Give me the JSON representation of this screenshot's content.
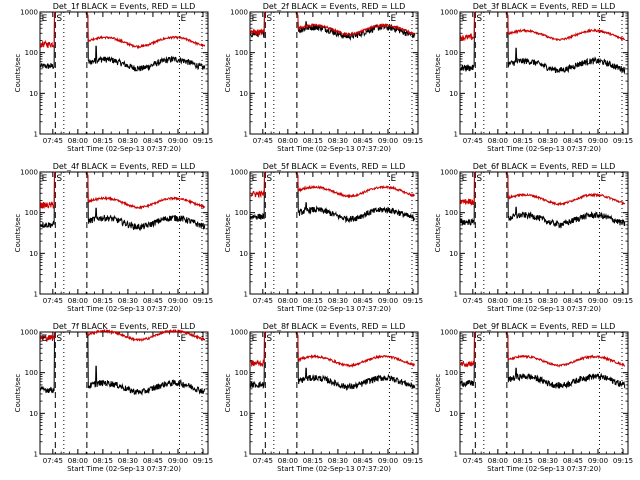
{
  "chart_data": [
    {
      "type": "line",
      "title": "Det_1f BLACK = Events, RED = LLD",
      "xlabel": "Start Time (02-Sep-13 07:37:20)",
      "ylabel": "Counts/sec",
      "ylog": true,
      "ylim": [
        1,
        1000
      ],
      "y_tick_labels": [
        "1",
        "10",
        "100",
        "1000"
      ],
      "x_tick_labels": [
        "07:45",
        "08:00",
        "08:15",
        "08:30",
        "08:45",
        "09:00",
        "09:15"
      ],
      "x_ticks": [
        7.75,
        8.0,
        8.25,
        8.5,
        8.75,
        9.0,
        9.25
      ],
      "xlim": [
        7.622,
        9.3
      ],
      "markers": [
        "E",
        "S",
        "E"
      ],
      "markers_x": [
        7.628,
        7.775,
        9.015
      ],
      "dashed_lines": [
        7.775,
        8.09
      ],
      "dotted_lines": [
        7.86,
        9.015,
        9.24
      ],
      "series": [
        {
          "color": "#000000",
          "base": 55,
          "peak": 90,
          "red_base": null
        },
        {
          "color": "#cc0000",
          "base": 190,
          "peak": 260
        }
      ]
    },
    {
      "type": "line",
      "title": "Det_2f BLACK = Events, RED = LLD",
      "xlabel": "Start Time (02-Sep-13 07:37:20)",
      "ylabel": "Counts/sec",
      "ylog": true,
      "ylim": [
        1,
        1000
      ],
      "y_tick_labels": [
        "1",
        "10",
        "100",
        "1000"
      ],
      "x_tick_labels": [
        "07:45",
        "08:00",
        "08:15",
        "08:30",
        "08:45",
        "09:00",
        "09:15"
      ],
      "x_ticks": [
        7.75,
        8.0,
        8.25,
        8.5,
        8.75,
        9.0,
        9.25
      ],
      "xlim": [
        7.622,
        9.3
      ],
      "markers": [
        "E",
        "S",
        "E"
      ],
      "markers_x": [
        7.628,
        7.775,
        9.015
      ],
      "dashed_lines": [
        7.775,
        8.09
      ],
      "dotted_lines": [
        7.86,
        9.015,
        9.24
      ],
      "series": [
        {
          "color": "#000000",
          "base": 340,
          "peak": 360
        },
        {
          "color": "#cc0000",
          "base": 380,
          "peak": 620
        }
      ]
    },
    {
      "type": "line",
      "title": "Det_3f BLACK = Events, RED = LLD",
      "xlabel": "Start Time (02-Sep-13 07:37:20)",
      "ylabel": "Counts/sec",
      "ylog": true,
      "ylim": [
        1,
        1000
      ],
      "y_tick_labels": [
        "1",
        "10",
        "100",
        "1000"
      ],
      "x_tick_labels": [
        "07:45",
        "08:00",
        "08:15",
        "08:30",
        "08:45",
        "09:00",
        "09:15"
      ],
      "x_ticks": [
        7.75,
        8.0,
        8.25,
        8.5,
        8.75,
        9.0,
        9.25
      ],
      "xlim": [
        7.622,
        9.3
      ],
      "markers": [
        "E",
        "S",
        "E"
      ],
      "markers_x": [
        7.628,
        7.775,
        9.015
      ],
      "dashed_lines": [
        7.775,
        8.09
      ],
      "dotted_lines": [
        7.86,
        9.015,
        9.24
      ],
      "series": [
        {
          "color": "#000000",
          "base": 50,
          "peak": 80
        },
        {
          "color": "#cc0000",
          "base": 280,
          "peak": 320
        }
      ]
    },
    {
      "type": "line",
      "title": "Det_4f BLACK = Events, RED = LLD",
      "xlabel": "Start Time (02-Sep-13 07:37:20)",
      "ylabel": "Counts/sec",
      "ylog": true,
      "ylim": [
        1,
        1000
      ],
      "y_tick_labels": [
        "1",
        "10",
        "100",
        "1000"
      ],
      "x_tick_labels": [
        "07:45",
        "08:00",
        "08:15",
        "08:30",
        "08:45",
        "09:00",
        "09:15"
      ],
      "x_ticks": [
        7.75,
        8.0,
        8.25,
        8.5,
        8.75,
        9.0,
        9.25
      ],
      "xlim": [
        7.622,
        9.3
      ],
      "markers": [
        "E",
        "S",
        "E"
      ],
      "markers_x": [
        7.628,
        7.775,
        9.015
      ],
      "dashed_lines": [
        7.775,
        8.09
      ],
      "dotted_lines": [
        7.86,
        9.015,
        9.24
      ],
      "series": [
        {
          "color": "#000000",
          "base": 60,
          "peak": 80
        },
        {
          "color": "#cc0000",
          "base": 180,
          "peak": 260
        }
      ]
    },
    {
      "type": "line",
      "title": "Det_5f BLACK = Events, RED = LLD",
      "xlabel": "Start Time (02-Sep-13 07:37:20)",
      "ylabel": "Counts/sec",
      "ylog": true,
      "ylim": [
        1,
        1000
      ],
      "y_tick_labels": [
        "1",
        "10",
        "100",
        "1000"
      ],
      "x_tick_labels": [
        "07:45",
        "08:00",
        "08:15",
        "08:30",
        "08:45",
        "09:00",
        "09:15"
      ],
      "x_ticks": [
        7.75,
        8.0,
        8.25,
        8.5,
        8.75,
        9.0,
        9.25
      ],
      "xlim": [
        7.622,
        9.3
      ],
      "markers": [
        "E",
        "S",
        "E"
      ],
      "markers_x": [
        7.628,
        7.775,
        9.015
      ],
      "dashed_lines": [
        7.775,
        8.09
      ],
      "dotted_lines": [
        7.86,
        9.015,
        9.24
      ],
      "series": [
        {
          "color": "#000000",
          "base": 95,
          "peak": 110
        },
        {
          "color": "#cc0000",
          "base": 340,
          "peak": 420
        }
      ]
    },
    {
      "type": "line",
      "title": "Det_6f BLACK = Events, RED = LLD",
      "xlabel": "Start Time (02-Sep-13 07:37:20)",
      "ylabel": "Counts/sec",
      "ylog": true,
      "ylim": [
        1,
        1000
      ],
      "y_tick_labels": [
        "1",
        "10",
        "100",
        "1000"
      ],
      "x_tick_labels": [
        "07:45",
        "08:00",
        "08:15",
        "08:30",
        "08:45",
        "09:00",
        "09:15"
      ],
      "x_ticks": [
        7.75,
        8.0,
        8.25,
        8.5,
        8.75,
        9.0,
        9.25
      ],
      "xlim": [
        7.622,
        9.3
      ],
      "markers": [
        "E",
        "S",
        "E"
      ],
      "markers_x": [
        7.628,
        7.775,
        9.015
      ],
      "dashed_lines": [
        7.775,
        8.09
      ],
      "dotted_lines": [
        7.86,
        9.015,
        9.24
      ],
      "series": [
        {
          "color": "#000000",
          "base": 70,
          "peak": 85
        },
        {
          "color": "#cc0000",
          "base": 220,
          "peak": 300
        }
      ]
    },
    {
      "type": "line",
      "title": "Det_7f BLACK = Events, RED = LLD",
      "xlabel": "Start Time (02-Sep-13 07:37:20)",
      "ylabel": "Counts/sec",
      "ylog": true,
      "ylim": [
        1,
        1000
      ],
      "y_tick_labels": [
        "1",
        "10",
        "100",
        "1000"
      ],
      "x_tick_labels": [
        "07:45",
        "08:00",
        "08:15",
        "08:30",
        "08:45",
        "09:00",
        "09:15"
      ],
      "x_ticks": [
        7.75,
        8.0,
        8.25,
        8.5,
        8.75,
        9.0,
        9.25
      ],
      "xlim": [
        7.622,
        9.3
      ],
      "markers": [
        "E",
        "S",
        "E"
      ],
      "markers_x": [
        7.628,
        7.775,
        9.015
      ],
      "dashed_lines": [
        7.775,
        8.09
      ],
      "dotted_lines": [
        7.86,
        9.015,
        9.24
      ],
      "series": [
        {
          "color": "#000000",
          "base": 45,
          "peak": 90
        },
        {
          "color": "#cc0000",
          "base": 850,
          "peak": 950
        }
      ]
    },
    {
      "type": "line",
      "title": "Det_8f BLACK = Events, RED = LLD",
      "xlabel": "Start Time (02-Sep-13 07:37:20)",
      "ylabel": "Counts/sec",
      "ylog": true,
      "ylim": [
        1,
        1000
      ],
      "y_tick_labels": [
        "1",
        "10",
        "100",
        "1000"
      ],
      "x_tick_labels": [
        "07:45",
        "08:00",
        "08:15",
        "08:30",
        "08:45",
        "09:00",
        "09:15"
      ],
      "x_ticks": [
        7.75,
        8.0,
        8.25,
        8.5,
        8.75,
        9.0,
        9.25
      ],
      "xlim": [
        7.622,
        9.3
      ],
      "markers": [
        "E",
        "S",
        "E"
      ],
      "markers_x": [
        7.628,
        7.775,
        9.015
      ],
      "dashed_lines": [
        7.775,
        8.09
      ],
      "dotted_lines": [
        7.86,
        9.015,
        9.24
      ],
      "series": [
        {
          "color": "#000000",
          "base": 60,
          "peak": 80
        },
        {
          "color": "#cc0000",
          "base": 200,
          "peak": 280
        }
      ]
    },
    {
      "type": "line",
      "title": "Det_9f BLACK = Events, RED = LLD",
      "xlabel": "Start Time (02-Sep-13 07:37:20)",
      "ylabel": "Counts/sec",
      "ylog": true,
      "ylim": [
        1,
        1000
      ],
      "y_tick_labels": [
        "1",
        "10",
        "100",
        "1000"
      ],
      "x_tick_labels": [
        "07:45",
        "08:00",
        "08:15",
        "08:30",
        "08:45",
        "09:00",
        "09:15"
      ],
      "x_ticks": [
        7.75,
        8.0,
        8.25,
        8.5,
        8.75,
        9.0,
        9.25
      ],
      "xlim": [
        7.622,
        9.3
      ],
      "markers": [
        "E",
        "S",
        "E"
      ],
      "markers_x": [
        7.628,
        7.775,
        9.015
      ],
      "dashed_lines": [
        7.775,
        8.09
      ],
      "dotted_lines": [
        7.86,
        9.015,
        9.24
      ],
      "series": [
        {
          "color": "#000000",
          "base": 65,
          "peak": 80
        },
        {
          "color": "#cc0000",
          "base": 200,
          "peak": 260
        }
      ]
    }
  ]
}
